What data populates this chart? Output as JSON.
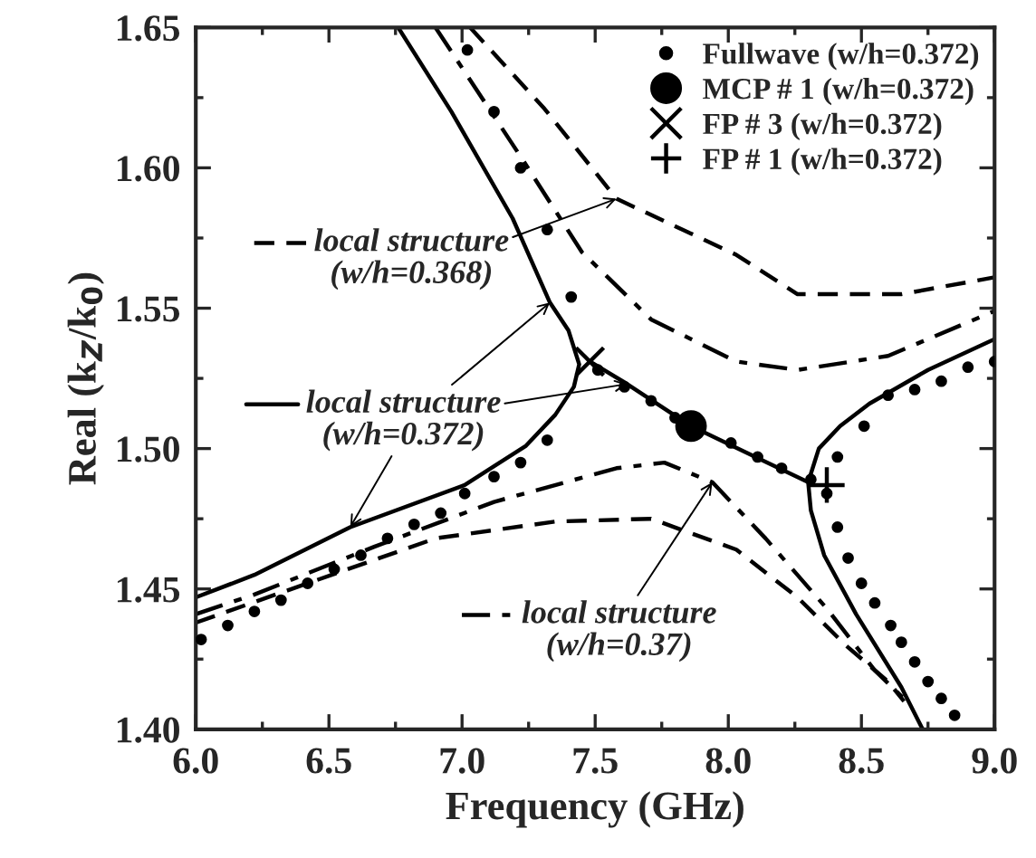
{
  "chart_data": {
    "type": "line",
    "xlabel": "Frequency (GHz)",
    "ylabel": "Real (k$_{Z}$/k$_{0}$)",
    "xlim": [
      6,
      9
    ],
    "ylim": [
      1.4,
      1.65
    ],
    "xticks": [
      {
        "value": 6,
        "label": "6.0"
      },
      {
        "value": 6.5,
        "label": "6.5"
      },
      {
        "value": 7,
        "label": "7.0"
      },
      {
        "value": 7.5,
        "label": "7.5"
      },
      {
        "value": 8,
        "label": "8.0"
      },
      {
        "value": 8.5,
        "label": "8.5"
      },
      {
        "value": 9,
        "label": "9.0"
      }
    ],
    "yticks": [
      {
        "value": 1.4,
        "label": "1.40"
      },
      {
        "value": 1.45,
        "label": "1.45"
      },
      {
        "value": 1.5,
        "label": "1.50"
      },
      {
        "value": 1.55,
        "label": "1.55"
      },
      {
        "value": 1.6,
        "label": "1.60"
      },
      {
        "value": 1.65,
        "label": "1.65"
      }
    ],
    "grid": false,
    "legend": "top right",
    "series": [
      {
        "name": "local structure\n(w/h=0.372)",
        "color": "#000000",
        "line_style": "solid",
        "x": [
          6.0,
          6.22,
          6.58,
          7.01,
          7.24,
          7.35,
          7.42,
          7.44,
          7.4,
          7.33,
          7.19,
          6.96,
          6.76
        ],
        "values": [
          1.447,
          1.455,
          1.472,
          1.487,
          1.501,
          1.512,
          1.522,
          1.53,
          1.542,
          1.552,
          1.582,
          1.62,
          1.65
        ]
      },
      {
        "color": "#000000",
        "line_style": "solid",
        "x": [
          7.48,
          7.62,
          7.86,
          8.3
        ],
        "values": [
          1.531,
          1.523,
          1.508,
          1.488
        ]
      },
      {
        "color": "#000000",
        "line_style": "solid",
        "x": [
          8.73,
          8.65,
          8.48,
          8.36,
          8.31,
          8.3,
          8.34,
          8.42,
          8.53,
          8.75,
          9.0
        ],
        "values": [
          1.4,
          1.415,
          1.441,
          1.462,
          1.478,
          1.488,
          1.5,
          1.508,
          1.516,
          1.528,
          1.539
        ]
      },
      {
        "name": "local structure\n(w/h=0.368)",
        "color": "#000000",
        "line_style": "dashed",
        "x": [
          7.03,
          7.31,
          7.58,
          8.03,
          8.26,
          8.65,
          9.0
        ],
        "values": [
          1.65,
          1.621,
          1.589,
          1.569,
          1.555,
          1.555,
          1.561
        ]
      },
      {
        "color": "#000000",
        "line_style": "dashed",
        "x": [
          6.0,
          6.42,
          6.9,
          7.35,
          7.71,
          8.03,
          8.26,
          8.44,
          8.6,
          8.66
        ],
        "values": [
          1.438,
          1.452,
          1.468,
          1.474,
          1.475,
          1.464,
          1.447,
          1.43,
          1.417,
          1.41
        ]
      },
      {
        "name": "local structure\n(w/h=0.37)",
        "color": "#000000",
        "line_style": "dashdot",
        "x": [
          6.9,
          7.22,
          7.45,
          7.71,
          8.03,
          8.26,
          8.6,
          9.0
        ],
        "values": [
          1.65,
          1.604,
          1.57,
          1.546,
          1.531,
          1.528,
          1.533,
          1.549
        ]
      },
      {
        "color": "#000000",
        "line_style": "dashdot",
        "x": [
          6.0,
          6.22,
          6.67,
          7.12,
          7.58,
          7.76,
          7.94,
          8.14,
          8.37,
          8.55,
          8.67
        ],
        "values": [
          1.441,
          1.448,
          1.465,
          1.481,
          1.493,
          1.495,
          1.488,
          1.468,
          1.443,
          1.421,
          1.41
        ]
      },
      {
        "name": "Fullwave (w/h=0.372)",
        "type": "scatter",
        "marker": "circle",
        "color": "#000000",
        "x": [
          6.02,
          6.12,
          6.22,
          6.32,
          6.42,
          6.52,
          6.62,
          6.72,
          6.82,
          6.92,
          7.01,
          7.12,
          7.22,
          7.32,
          7.02,
          7.12,
          7.22,
          7.32,
          7.41,
          7.51,
          7.61,
          7.71,
          7.8,
          8.01,
          8.11,
          8.2,
          8.31,
          8.37,
          8.41,
          8.45,
          8.5,
          8.55,
          8.61,
          8.65,
          8.7,
          8.75,
          8.8,
          8.85,
          8.41,
          8.51,
          8.6,
          8.7,
          8.8,
          8.9,
          9.0
        ],
        "values": [
          1.432,
          1.437,
          1.442,
          1.446,
          1.452,
          1.457,
          1.462,
          1.468,
          1.473,
          1.477,
          1.484,
          1.49,
          1.495,
          1.503,
          1.642,
          1.62,
          1.6,
          1.578,
          1.554,
          1.528,
          1.522,
          1.517,
          1.511,
          1.502,
          1.497,
          1.493,
          1.489,
          1.484,
          1.472,
          1.461,
          1.452,
          1.445,
          1.437,
          1.431,
          1.424,
          1.417,
          1.411,
          1.405,
          1.497,
          1.508,
          1.519,
          1.521,
          1.524,
          1.529,
          1.531
        ]
      },
      {
        "name": "MCP # 1 (w/h=0.372)",
        "type": "scatter",
        "marker": "circle",
        "color": "#000000",
        "x": [
          7.86
        ],
        "values": [
          1.508
        ]
      },
      {
        "name": "FP # 3 (w/h=0.372)",
        "type": "scatter",
        "marker": "cross",
        "color": "#000000",
        "x": [
          7.48
        ],
        "values": [
          1.531
        ]
      },
      {
        "name": "FP # 1 (w/h=0.372)",
        "type": "scatter",
        "marker": "plus",
        "color": "#000000",
        "x": [
          8.37
        ],
        "values": [
          1.487
        ]
      }
    ]
  }
}
